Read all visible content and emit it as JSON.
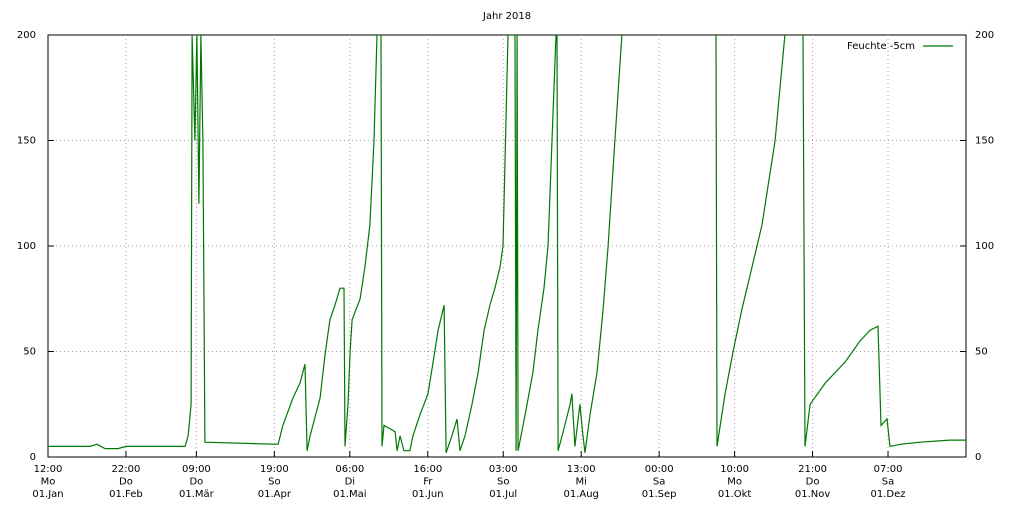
{
  "chart_data": {
    "type": "line",
    "title": "Jahr 2018",
    "legend": "top right",
    "grid": true,
    "xlim": [
      0,
      365
    ],
    "xticks": [
      {
        "value": 0,
        "label": [
          "12:00",
          "Mo",
          "01.Jan"
        ]
      },
      {
        "value": 31,
        "label": [
          "22:00",
          "Do",
          "01.Feb"
        ]
      },
      {
        "value": 59,
        "label": [
          "09:00",
          "Do",
          "01.Mär"
        ]
      },
      {
        "value": 90,
        "label": [
          "19:00",
          "So",
          "01.Apr"
        ]
      },
      {
        "value": 120,
        "label": [
          "06:00",
          "Di",
          "01.Mai"
        ]
      },
      {
        "value": 151,
        "label": [
          "16:00",
          "Fr",
          "01.Jun"
        ]
      },
      {
        "value": 181,
        "label": [
          "03:00",
          "So",
          "01.Jul"
        ]
      },
      {
        "value": 212,
        "label": [
          "13:00",
          "Mi",
          "01.Aug"
        ]
      },
      {
        "value": 243,
        "label": [
          "00:00",
          "Sa",
          "01.Sep"
        ]
      },
      {
        "value": 273,
        "label": [
          "10:00",
          "Mo",
          "01.Okt"
        ]
      },
      {
        "value": 304,
        "label": [
          "21:00",
          "Do",
          "01.Nov"
        ]
      },
      {
        "value": 334,
        "label": [
          "07:00",
          "Sa",
          "01.Dez"
        ]
      }
    ],
    "ylim": [
      0,
      200
    ],
    "yticks": [
      0,
      50,
      100,
      150,
      200
    ],
    "y2lim": [
      0,
      200
    ],
    "y2ticks": [
      0,
      50,
      100,
      150,
      200
    ],
    "x": [
      0,
      16.7,
      19.5,
      22.7,
      27.8,
      31,
      54.5,
      55.7,
      56.9,
      57.3,
      58.4,
      59.2,
      60,
      60.8,
      61.6,
      62,
      62.4,
      91.5,
      93.4,
      97.4,
      100.2,
      102.2,
      103,
      104.2,
      108.2,
      110.1,
      112.1,
      114.1,
      116.1,
      117.7,
      118.1,
      119.3,
      120.1,
      120.9,
      124.1,
      126,
      128,
      129.6,
      130.8,
      132.4,
      132.8,
      133.6,
      138,
      138.8,
      140,
      141.5,
      143.9,
      145.1,
      147.9,
      151.1,
      153.1,
      155.1,
      157.5,
      158.3,
      160.6,
      162.6,
      163.8,
      165.8,
      168.6,
      171,
      173.4,
      175.7,
      177.7,
      179.7,
      180.9,
      182.9,
      185.7,
      186.1,
      186.5,
      186.9,
      189.7,
      192.8,
      194.8,
      197.2,
      198.8,
      200.4,
      202,
      202.4,
      202.8,
      204.4,
      207.6,
      208.3,
      209.5,
      211.5,
      212.7,
      213.5,
      215.5,
      218.3,
      220.7,
      222.7,
      225.4,
      228.2,
      240,
      265.6,
      266,
      269.2,
      272.4,
      275.9,
      279.9,
      283.9,
      289.1,
      293,
      297,
      300.2,
      301,
      303,
      309,
      316.9,
      322.9,
      326.8,
      330,
      331.2,
      333.6,
      334.8,
      338.8,
      346.7,
      358.6,
      365
    ],
    "series": [
      {
        "name": "Feuchte -5cm",
        "color": "#007800",
        "values": [
          5,
          5,
          6,
          4,
          4,
          5,
          5,
          10,
          25,
          200,
          150,
          200,
          120,
          200,
          150,
          80,
          7,
          6,
          15,
          28,
          35,
          44,
          3,
          10,
          28,
          48,
          65,
          72,
          80,
          80,
          5,
          25,
          50,
          65,
          75,
          90,
          110,
          150,
          200,
          200,
          5,
          15,
          12,
          3,
          10,
          3,
          3,
          10,
          20,
          30,
          45,
          60,
          72,
          2,
          10,
          18,
          3,
          10,
          25,
          40,
          60,
          72,
          80,
          90,
          100,
          200,
          200,
          3,
          200,
          3,
          20,
          40,
          60,
          80,
          100,
          150,
          200,
          200,
          3,
          10,
          25,
          30,
          5,
          25,
          10,
          2,
          20,
          40,
          70,
          100,
          150,
          200,
          null,
          200,
          5,
          30,
          50,
          70,
          90,
          110,
          150,
          200,
          null,
          200,
          5,
          25,
          35,
          45,
          55,
          60,
          62,
          15,
          18,
          5,
          6,
          7,
          8,
          8
        ]
      }
    ]
  }
}
